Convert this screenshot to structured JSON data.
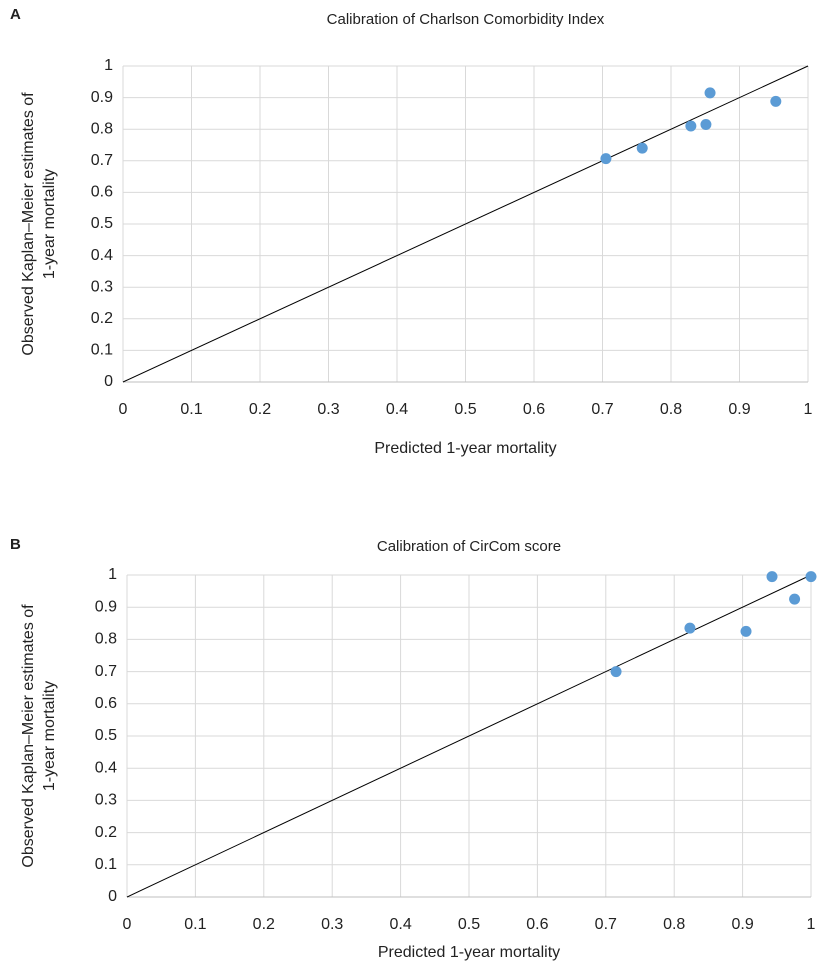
{
  "chart_data": [
    {
      "type": "scatter",
      "panel": "A",
      "title": "Calibration of Charlson Comorbidity Index",
      "xlabel": "Predicted 1-year mortality",
      "ylabel": [
        "Observed Kaplan–Meier estimates of",
        "1-year mortality"
      ],
      "x": [
        0.705,
        0.758,
        0.829,
        0.851,
        0.857,
        0.953
      ],
      "values": [
        0.707,
        0.74,
        0.81,
        0.815,
        0.915,
        0.888
      ],
      "color": "#5b9bd5",
      "xlim": [
        0,
        1
      ],
      "ylim": [
        0,
        1
      ],
      "xticks": [
        0,
        0.1,
        0.2,
        0.3,
        0.4,
        0.5,
        0.6,
        0.7,
        0.8,
        0.9,
        1
      ],
      "yticks": [
        0,
        0.1,
        0.2,
        0.3,
        0.4,
        0.5,
        0.6,
        0.7,
        0.8,
        0.9,
        1
      ],
      "grid": true,
      "diagonal": true
    },
    {
      "type": "scatter",
      "panel": "B",
      "title": "Calibration of CirCom score",
      "xlabel": "Predicted 1-year mortality",
      "ylabel": [
        "Observed Kaplan–Meier estimates of",
        "1-year mortality"
      ],
      "x": [
        0.715,
        0.823,
        0.905,
        0.943,
        0.976,
        1.0
      ],
      "values": [
        0.7,
        0.835,
        0.825,
        0.995,
        0.925,
        0.995
      ],
      "color": "#5b9bd5",
      "xlim": [
        0,
        1
      ],
      "ylim": [
        0,
        1
      ],
      "xticks": [
        0,
        0.1,
        0.2,
        0.3,
        0.4,
        0.5,
        0.6,
        0.7,
        0.8,
        0.9,
        1
      ],
      "yticks": [
        0,
        0.1,
        0.2,
        0.3,
        0.4,
        0.5,
        0.6,
        0.7,
        0.8,
        0.9,
        1
      ],
      "grid": true,
      "diagonal": true
    }
  ]
}
